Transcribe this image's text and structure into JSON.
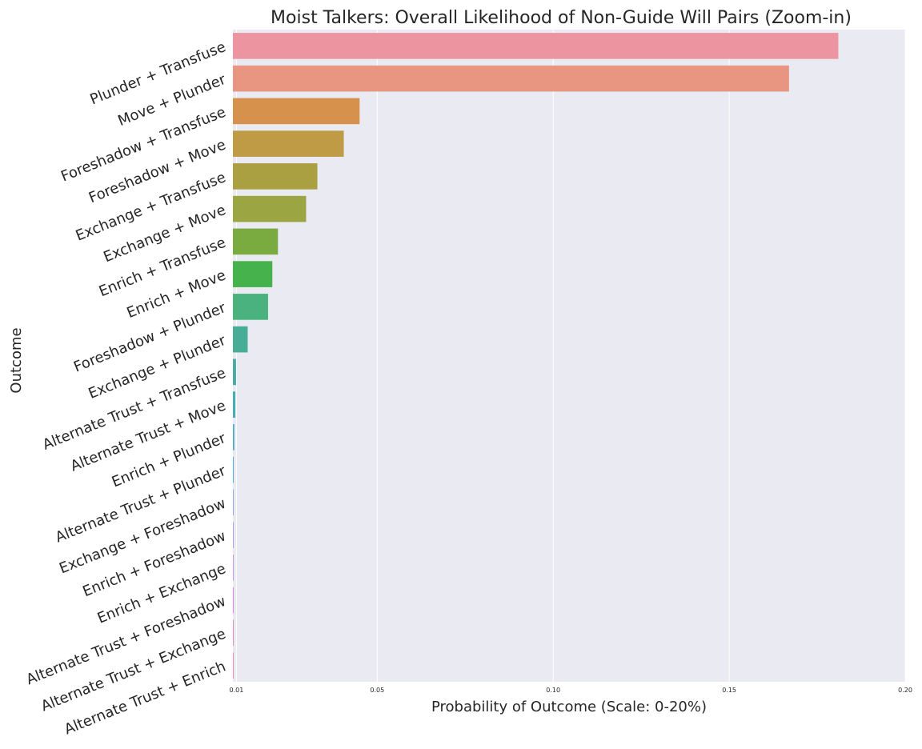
{
  "chart_data": {
    "type": "bar",
    "orientation": "horizontal",
    "title": "Moist Talkers: Overall Likelihood of Non-Guide Will Pairs (Zoom-in)",
    "xlabel": "Probability of Outcome (Scale: 0-20%)",
    "ylabel": "Outcome",
    "xlim": [
      0,
      0.2
    ],
    "xticks": [
      0.01,
      0.05,
      0.1,
      0.15,
      0.2
    ],
    "xtick_labels": [
      "0.01",
      "0.05",
      "0.10",
      "0.15",
      "0.20"
    ],
    "grid": true,
    "bars": [
      {
        "label": "Plunder + Transfuse",
        "value": 0.181,
        "color": "#ec95a0"
      },
      {
        "label": "Move + Plunder",
        "value": 0.167,
        "color": "#e89682"
      },
      {
        "label": "Foreshadow + Transfuse",
        "value": 0.045,
        "color": "#d6924c"
      },
      {
        "label": "Foreshadow + Move",
        "value": 0.0405,
        "color": "#c09b46"
      },
      {
        "label": "Exchange + Transfuse",
        "value": 0.033,
        "color": "#aaa042"
      },
      {
        "label": "Exchange + Move",
        "value": 0.0298,
        "color": "#9ba542"
      },
      {
        "label": "Enrich + Transfuse",
        "value": 0.0218,
        "color": "#7aab41"
      },
      {
        "label": "Enrich + Move",
        "value": 0.0202,
        "color": "#46b24b"
      },
      {
        "label": "Foreshadow + Plunder",
        "value": 0.019,
        "color": "#4ab27e"
      },
      {
        "label": "Exchange + Plunder",
        "value": 0.0132,
        "color": "#47ad96"
      },
      {
        "label": "Alternate Trust + Transfuse",
        "value": 0.0099,
        "color": "#48ada6"
      },
      {
        "label": "Alternate Trust + Move",
        "value": 0.0097,
        "color": "#48adb5"
      },
      {
        "label": "Enrich + Plunder",
        "value": 0.0094,
        "color": "#4badc6"
      },
      {
        "label": "Alternate Trust + Plunder",
        "value": 0.0042,
        "color": "#52aee0"
      },
      {
        "label": "Exchange + Foreshadow",
        "value": 0.0033,
        "color": "#95a9e6"
      },
      {
        "label": "Enrich + Foreshadow",
        "value": 0.0023,
        "color": "#b0a2ec"
      },
      {
        "label": "Enrich + Exchange",
        "value": 0.0017,
        "color": "#cc97ec"
      },
      {
        "label": "Alternate Trust + Foreshadow",
        "value": 0.0012,
        "color": "#e08ae6"
      },
      {
        "label": "Alternate Trust + Exchange",
        "value": 0.0006,
        "color": "#ec89c6"
      },
      {
        "label": "Alternate Trust + Enrich",
        "value": 0.0003,
        "color": "#ee8fb6"
      }
    ]
  }
}
